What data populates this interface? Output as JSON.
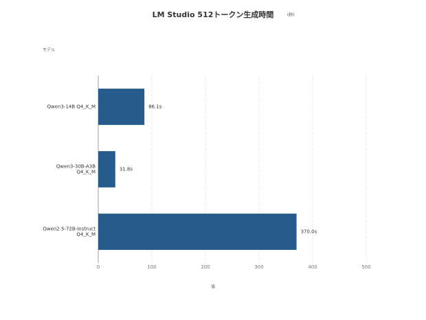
{
  "chart_data": {
    "type": "barh",
    "title": "LM Studio 512トークン生成時間",
    "subtitle": "(秒)",
    "y_label": "モデル",
    "x_label": "値",
    "categories": [
      [
        "Qwen3-14B Q4_K_M"
      ],
      [
        "Qwen3-30B-A3B",
        "Q4_K_M"
      ],
      [
        "Qwen2.5-72B-Instruct",
        "Q4_K_M"
      ]
    ],
    "values": [
      86.1,
      31.8,
      370.0
    ],
    "value_labels": [
      "86.1s",
      "31.8s",
      "370.0s"
    ],
    "color": "#275b8e",
    "xlim": [
      0,
      500
    ],
    "xticks": [
      0,
      100,
      200,
      300,
      400,
      500
    ],
    "grid": true
  }
}
